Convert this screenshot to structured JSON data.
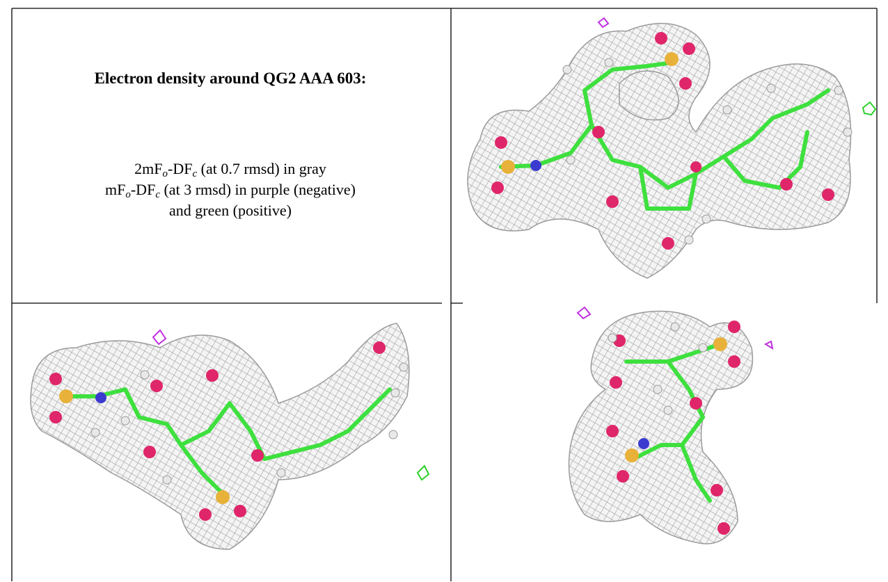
{
  "caption": {
    "title": "Electron density around QG2 AAA 603:",
    "lines": [
      [
        {
          "t": "2mF"
        },
        {
          "sub": "o"
        },
        {
          "t": "-DF"
        },
        {
          "sub": "c"
        },
        {
          "t": " (at 0.7 rmsd) in gray"
        }
      ],
      [
        {
          "t": "mF"
        },
        {
          "sub": "o"
        },
        {
          "t": "-DF"
        },
        {
          "sub": "c"
        },
        {
          "t": " (at 3 rmsd) in purple (negative)"
        }
      ],
      [
        {
          "t": "and green (positive)"
        }
      ]
    ]
  }
}
